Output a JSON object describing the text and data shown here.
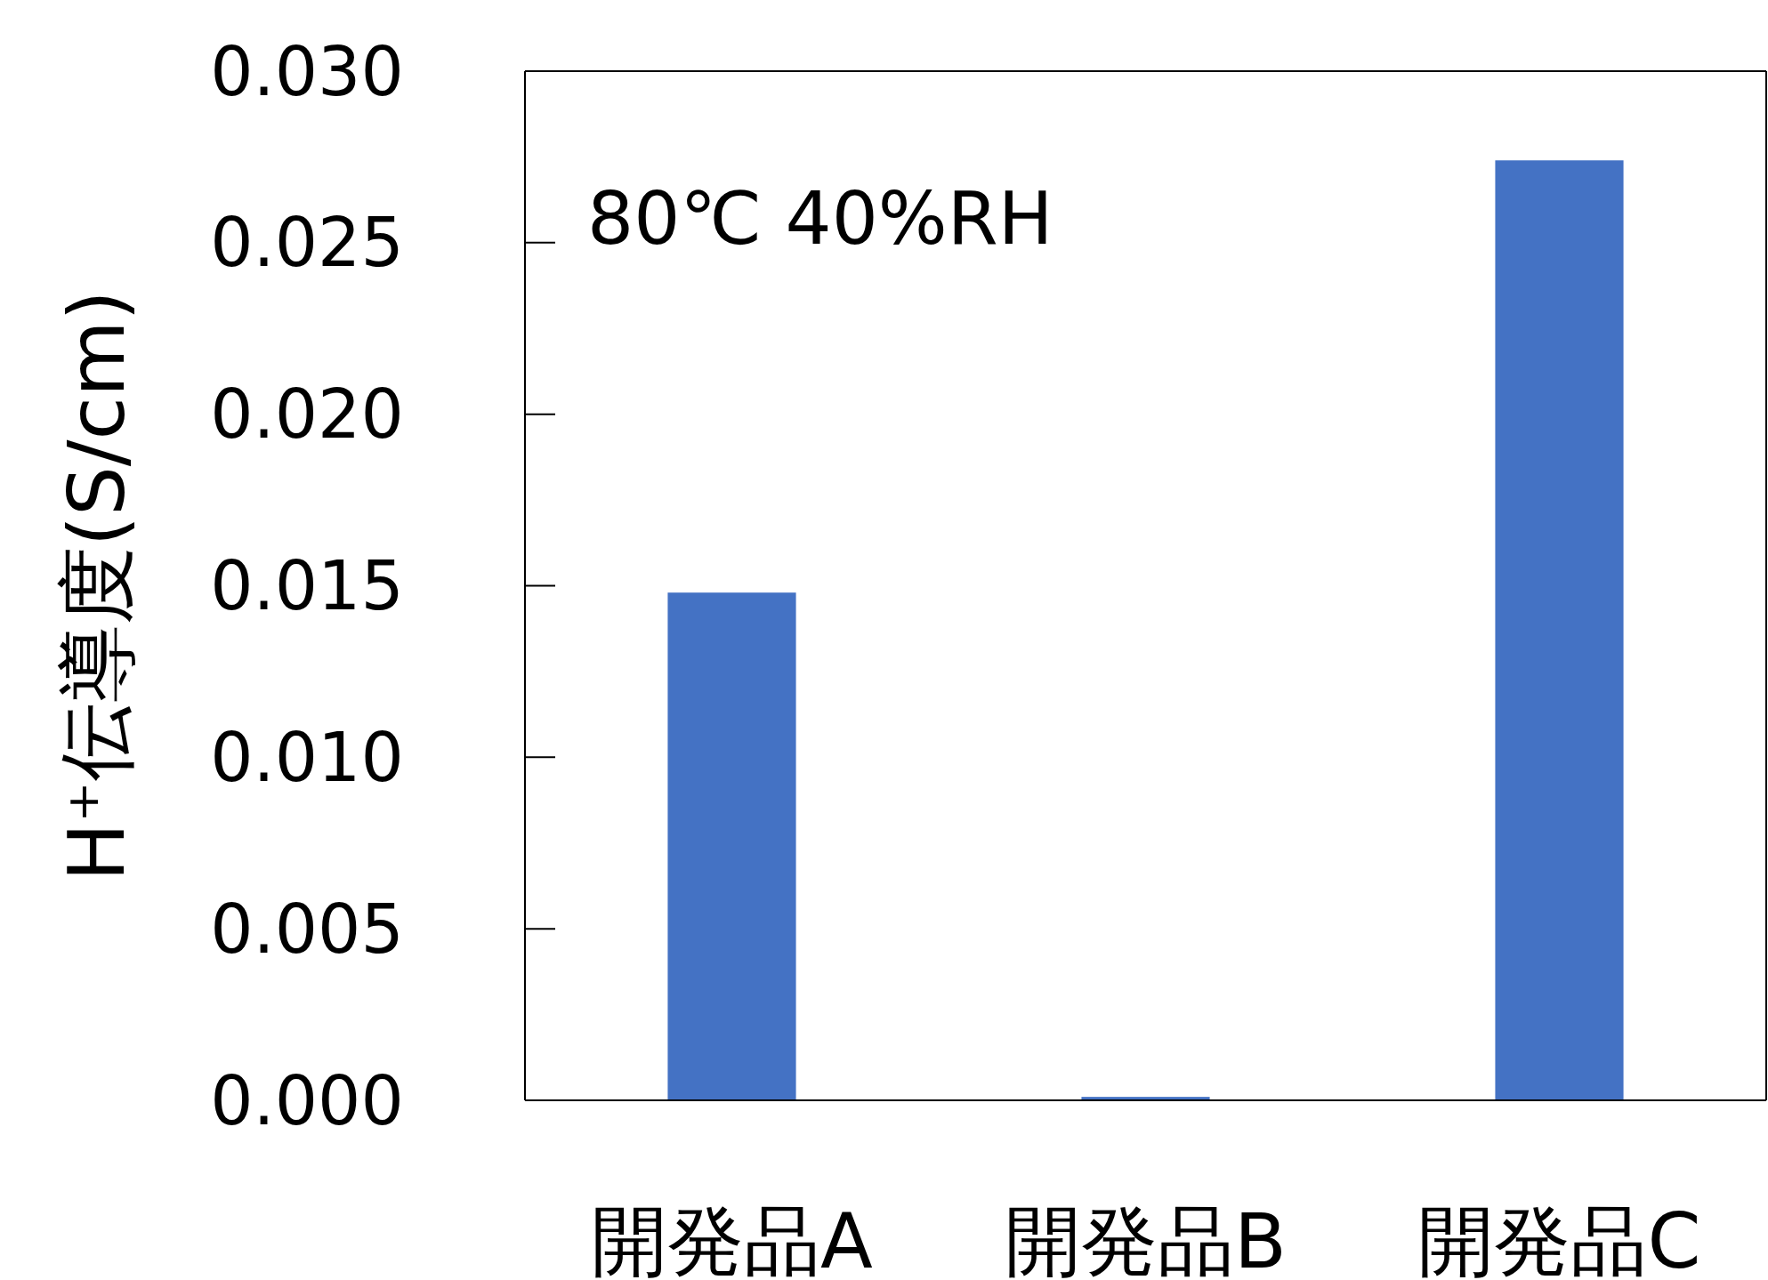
{
  "chart_data": {
    "type": "bar",
    "ylabel": "H⁺伝導度(S/cm)",
    "annotations": [
      "80℃ 40%RH"
    ],
    "categories": [
      "開発品A",
      "開発品B",
      "開発品C"
    ],
    "values": [
      0.0148,
      0.0001,
      0.0274
    ],
    "color": "#4472c4",
    "ylim": [
      0,
      0.03
    ],
    "yticks": [
      {
        "value": 0,
        "label": "0.000"
      },
      {
        "value": 0.005,
        "label": "0.005"
      },
      {
        "value": 0.01,
        "label": "0.010"
      },
      {
        "value": 0.015,
        "label": "0.015"
      },
      {
        "value": 0.02,
        "label": "0.020"
      },
      {
        "value": 0.025,
        "label": "0.025"
      },
      {
        "value": 0.03,
        "label": "0.030"
      }
    ],
    "grid": false
  }
}
